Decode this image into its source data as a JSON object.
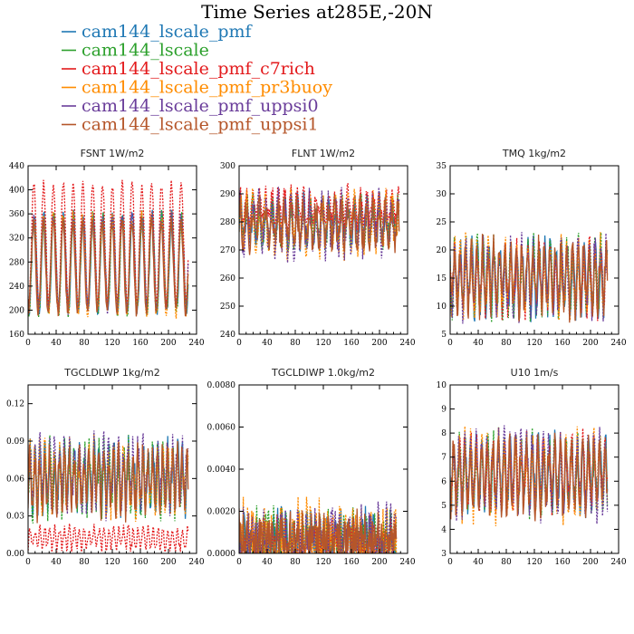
{
  "title": "Time Series at285E,-20N",
  "legend": [
    {
      "label": "cam144_lscale_pmf",
      "color": "#1f78b4"
    },
    {
      "label": "cam144_lscale",
      "color": "#2ca02c"
    },
    {
      "label": "cam144_lscale_pmf_c7rich",
      "color": "#e31a1c"
    },
    {
      "label": "cam144_lscale_pmf_pr3buoy",
      "color": "#ff8c00"
    },
    {
      "label": "cam144_lscale_pmf_uppsi0",
      "color": "#6a3d9a"
    },
    {
      "label": "cam144_lscale_pmf_uppsi1",
      "color": "#b5562a"
    }
  ],
  "chart_data": [
    {
      "type": "line",
      "title": "FSNT   1W/m2",
      "xlim": [
        0,
        240
      ],
      "ylim": [
        160,
        440
      ],
      "xticks": [
        0,
        40,
        80,
        120,
        160,
        200,
        240
      ],
      "yticks": [
        160,
        200,
        240,
        280,
        320,
        360,
        400,
        440
      ],
      "yticklabels": [
        "160",
        "200",
        "240",
        "280",
        "320",
        "360",
        "400",
        "440"
      ],
      "x_range": [
        0,
        228
      ],
      "series": [
        {
          "color": "#1f78b4",
          "base": 280,
          "amp": 80,
          "period": 14,
          "noise": 10,
          "dashed": false
        },
        {
          "color": "#2ca02c",
          "base": 275,
          "amp": 80,
          "period": 14,
          "noise": 12,
          "dashed": true
        },
        {
          "color": "#e31a1c",
          "base": 310,
          "amp": 100,
          "period": 14,
          "noise": 8,
          "dashed": true
        },
        {
          "color": "#ff8c00",
          "base": 275,
          "amp": 80,
          "period": 14,
          "noise": 12,
          "dashed": true
        },
        {
          "color": "#6a3d9a",
          "base": 278,
          "amp": 78,
          "period": 14,
          "noise": 10,
          "dashed": true
        },
        {
          "color": "#b5562a",
          "base": 272,
          "amp": 75,
          "period": 14,
          "noise": 10,
          "dashed": false
        }
      ]
    },
    {
      "type": "line",
      "title": "FLNT   1W/m2",
      "xlim": [
        0,
        240
      ],
      "ylim": [
        240,
        300
      ],
      "xticks": [
        0,
        40,
        80,
        120,
        160,
        200,
        240
      ],
      "yticks": [
        240,
        250,
        260,
        270,
        280,
        290,
        300
      ],
      "yticklabels": [
        "240",
        "250",
        "260",
        "270",
        "280",
        "290",
        "300"
      ],
      "x_range": [
        0,
        228
      ],
      "series": [
        {
          "color": "#1f78b4",
          "base": 280,
          "amp": 6,
          "period": 9,
          "noise": 5,
          "dashed": false
        },
        {
          "color": "#2ca02c",
          "base": 280,
          "amp": 6,
          "period": 9,
          "noise": 6,
          "dashed": true
        },
        {
          "color": "#e31a1c",
          "base": 285,
          "amp": 5,
          "period": 9,
          "noise": 4,
          "dashed": true
        },
        {
          "color": "#ff8c00",
          "base": 279,
          "amp": 7,
          "period": 9,
          "noise": 7,
          "dashed": true
        },
        {
          "color": "#6a3d9a",
          "base": 279,
          "amp": 7,
          "period": 9,
          "noise": 7,
          "dashed": true
        },
        {
          "color": "#b5562a",
          "base": 279,
          "amp": 6,
          "period": 9,
          "noise": 5,
          "dashed": false
        }
      ]
    },
    {
      "type": "line",
      "title": "TMQ   1kg/m2",
      "xlim": [
        0,
        240
      ],
      "ylim": [
        5,
        35
      ],
      "xticks": [
        0,
        40,
        80,
        120,
        160,
        200,
        240
      ],
      "yticks": [
        5,
        10,
        15,
        20,
        25,
        30,
        35
      ],
      "yticklabels": [
        "5",
        "10",
        "15",
        "20",
        "25",
        "30",
        "35"
      ],
      "x_range": [
        0,
        224
      ],
      "series": [
        {
          "color": "#1f78b4",
          "base": 15,
          "amp": 5,
          "period": 8,
          "noise": 3,
          "dashed": false
        },
        {
          "color": "#2ca02c",
          "base": 15,
          "amp": 5,
          "period": 8,
          "noise": 3.5,
          "dashed": true
        },
        {
          "color": "#e31a1c",
          "base": 15,
          "amp": 5,
          "period": 8,
          "noise": 3,
          "dashed": true
        },
        {
          "color": "#ff8c00",
          "base": 15,
          "amp": 5,
          "period": 8,
          "noise": 3.5,
          "dashed": true
        },
        {
          "color": "#6a3d9a",
          "base": 15,
          "amp": 5,
          "period": 8,
          "noise": 3.5,
          "dashed": true
        },
        {
          "color": "#b5562a",
          "base": 15,
          "amp": 5,
          "period": 8,
          "noise": 3,
          "dashed": false
        }
      ]
    },
    {
      "type": "line",
      "title": "TGCLDLWP   1kg/m2",
      "xlim": [
        0,
        240
      ],
      "ylim": [
        0,
        0.135
      ],
      "xticks": [
        0,
        40,
        80,
        120,
        160,
        200,
        240
      ],
      "yticks": [
        0,
        0.03,
        0.06,
        0.09,
        0.12
      ],
      "yticklabels": [
        "0.00",
        "0.03",
        "0.06",
        "0.09",
        "0.12"
      ],
      "x_range": [
        0,
        228
      ],
      "series": [
        {
          "color": "#1f78b4",
          "base": 0.06,
          "amp": 0.02,
          "period": 7,
          "noise": 0.015,
          "dashed": false
        },
        {
          "color": "#2ca02c",
          "base": 0.06,
          "amp": 0.02,
          "period": 7,
          "noise": 0.018,
          "dashed": true
        },
        {
          "color": "#e31a1c",
          "base": 0.012,
          "amp": 0.008,
          "period": 7,
          "noise": 0.004,
          "dashed": true
        },
        {
          "color": "#ff8c00",
          "base": 0.06,
          "amp": 0.02,
          "period": 7,
          "noise": 0.016,
          "dashed": true
        },
        {
          "color": "#6a3d9a",
          "base": 0.062,
          "amp": 0.02,
          "period": 7,
          "noise": 0.017,
          "dashed": true
        },
        {
          "color": "#b5562a",
          "base": 0.058,
          "amp": 0.02,
          "period": 7,
          "noise": 0.014,
          "dashed": false
        }
      ]
    },
    {
      "type": "line",
      "title": "TGCLDIWP   1.0kg/m2",
      "xlim": [
        0,
        240
      ],
      "ylim": [
        0,
        0.008
      ],
      "xticks": [
        0,
        40,
        80,
        120,
        160,
        200,
        240
      ],
      "yticks": [
        0,
        0.002,
        0.004,
        0.006,
        0.008
      ],
      "yticklabels": [
        "0.0000",
        "0.0020",
        "0.0040",
        "0.0060",
        "0.0080"
      ],
      "x_range": [
        0,
        224
      ],
      "series": [
        {
          "color": "#1f78b4",
          "base": 0.0006,
          "amp": 0.0005,
          "period": 6,
          "noise": 0.0012,
          "dashed": false
        },
        {
          "color": "#2ca02c",
          "base": 0.0006,
          "amp": 0.0005,
          "period": 6,
          "noise": 0.0014,
          "dashed": true
        },
        {
          "color": "#e31a1c",
          "base": 0.0005,
          "amp": 0.0004,
          "period": 6,
          "noise": 0.001,
          "dashed": true
        },
        {
          "color": "#ff8c00",
          "base": 0.0006,
          "amp": 0.0005,
          "period": 6,
          "noise": 0.0016,
          "dashed": true
        },
        {
          "color": "#6a3d9a",
          "base": 0.0006,
          "amp": 0.0005,
          "period": 6,
          "noise": 0.0014,
          "dashed": true
        },
        {
          "color": "#b5562a",
          "base": 0.0006,
          "amp": 0.0005,
          "period": 6,
          "noise": 0.0012,
          "dashed": false
        }
      ]
    },
    {
      "type": "line",
      "title": "U10   1m/s",
      "xlim": [
        0,
        240
      ],
      "ylim": [
        3,
        10
      ],
      "xticks": [
        0,
        40,
        80,
        120,
        160,
        200,
        240
      ],
      "yticks": [
        3,
        4,
        5,
        6,
        7,
        8,
        9,
        10
      ],
      "yticklabels": [
        "3",
        "4",
        "5",
        "6",
        "7",
        "8",
        "9",
        "10"
      ],
      "x_range": [
        0,
        224
      ],
      "series": [
        {
          "color": "#1f78b4",
          "base": 6.3,
          "amp": 1.2,
          "period": 8,
          "noise": 0.7,
          "dashed": false
        },
        {
          "color": "#2ca02c",
          "base": 6.3,
          "amp": 1.2,
          "period": 8,
          "noise": 0.8,
          "dashed": true
        },
        {
          "color": "#e31a1c",
          "base": 6.4,
          "amp": 1.2,
          "period": 8,
          "noise": 0.7,
          "dashed": true
        },
        {
          "color": "#ff8c00",
          "base": 6.2,
          "amp": 1.3,
          "period": 8,
          "noise": 0.8,
          "dashed": true
        },
        {
          "color": "#6a3d9a",
          "base": 6.3,
          "amp": 1.3,
          "period": 8,
          "noise": 0.8,
          "dashed": true
        },
        {
          "color": "#b5562a",
          "base": 6.2,
          "amp": 1.2,
          "period": 8,
          "noise": 0.7,
          "dashed": false
        }
      ]
    }
  ]
}
